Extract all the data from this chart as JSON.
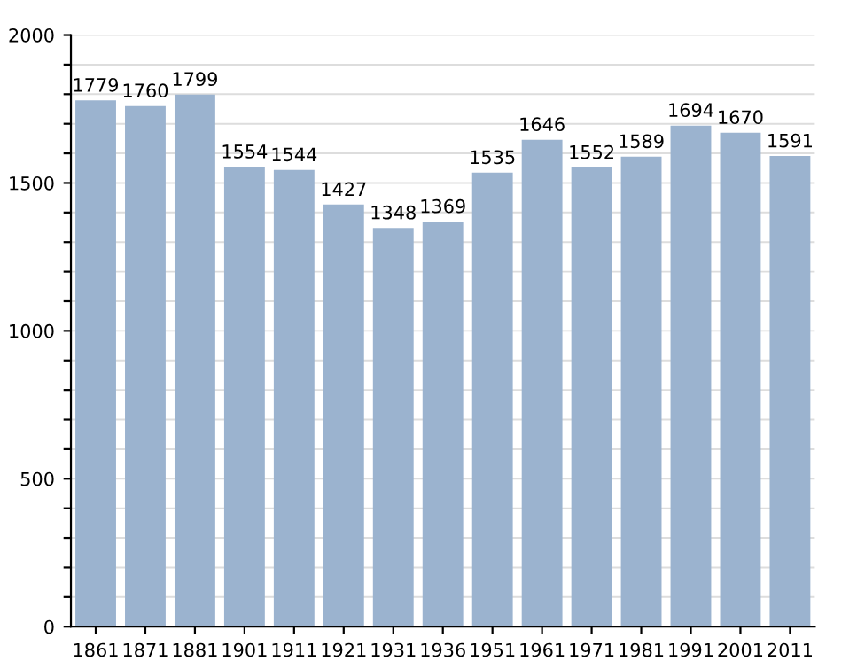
{
  "chart_data": {
    "type": "bar",
    "categories": [
      "1861",
      "1871",
      "1881",
      "1901",
      "1911",
      "1921",
      "1931",
      "1936",
      "1951",
      "1961",
      "1971",
      "1981",
      "1991",
      "2001",
      "2011"
    ],
    "values": [
      1779,
      1760,
      1799,
      1554,
      1544,
      1427,
      1348,
      1369,
      1535,
      1646,
      1552,
      1589,
      1694,
      1670,
      1591
    ],
    "color": "#9bb3cf",
    "data_labels": true,
    "ylim": [
      0,
      2000
    ],
    "yticks": [
      0,
      {
        "value": 100,
        "label": null
      },
      {
        "value": 200,
        "label": null
      },
      {
        "value": 300,
        "label": null
      },
      {
        "value": 400,
        "label": null
      },
      500,
      {
        "value": 600,
        "label": null
      },
      {
        "value": 700,
        "label": null
      },
      {
        "value": 800,
        "label": null
      },
      {
        "value": 900,
        "label": null
      },
      1000,
      {
        "value": 1100,
        "label": null
      },
      {
        "value": 1200,
        "label": null
      },
      {
        "value": 1300,
        "label": null
      },
      {
        "value": 1400,
        "label": null
      },
      1500,
      {
        "value": 1600,
        "label": null
      },
      {
        "value": 1700,
        "label": null
      },
      {
        "value": 1800,
        "label": null
      },
      {
        "value": 1900,
        "label": null
      },
      2000
    ],
    "grid": "y"
  }
}
